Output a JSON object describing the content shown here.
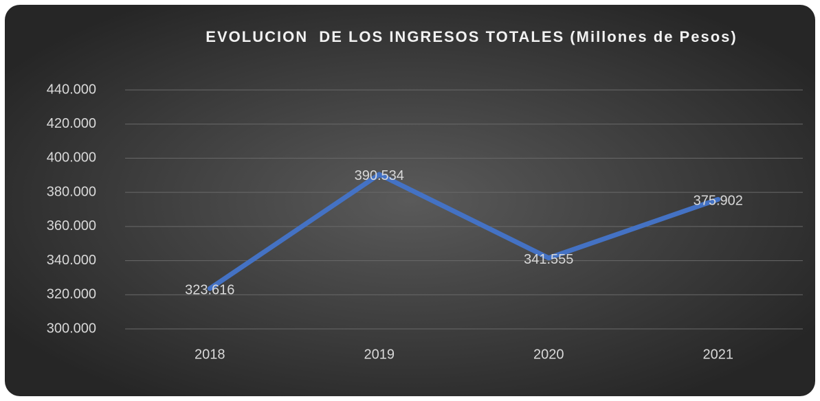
{
  "chart_data": {
    "type": "line",
    "title": "EVOLUCION  DE LOS INGRESOS TOTALES (Millones de Pesos)",
    "categories": [
      "2018",
      "2019",
      "2020",
      "2021"
    ],
    "series": [
      {
        "color": "#4472c4",
        "values": [
          323616,
          390534,
          341555,
          375902
        ],
        "value_labels": [
          "323.616",
          "390.534",
          "341.555",
          "375.902"
        ]
      }
    ],
    "ylim": [
      300000,
      440000
    ],
    "yticks": [
      {
        "value": 300000,
        "label": "300.000"
      },
      {
        "value": 320000,
        "label": "320.000"
      },
      {
        "value": 340000,
        "label": "340.000"
      },
      {
        "value": 360000,
        "label": "360.000"
      },
      {
        "value": 380000,
        "label": "380.000"
      },
      {
        "value": 400000,
        "label": "400.000"
      },
      {
        "value": 420000,
        "label": "420.000"
      },
      {
        "value": 440000,
        "label": "440.000"
      }
    ],
    "grid": true
  }
}
